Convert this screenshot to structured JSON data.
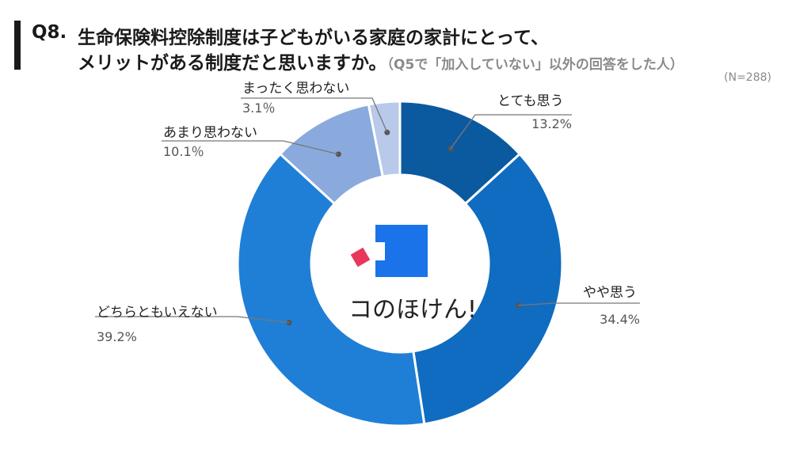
{
  "header": {
    "question_number": "Q8.",
    "question_line1": "生命保険料控除制度は子どもがいる家庭の家計にとって、",
    "question_line2": "メリットがある制度だと思いますか。",
    "question_note": "（Q5で「加入していない」以外の回答をした人）",
    "sample_size": "(N=288)"
  },
  "logo": {
    "text": "コのほけん!",
    "accent_color": "#e8375a",
    "brand_color": "#1a73e8"
  },
  "chart_data": {
    "type": "pie",
    "donut": true,
    "unit": "%",
    "slices": [
      {
        "label": "とても思う",
        "value": 13.2,
        "display": "13.2%",
        "color": "#0b5aa0"
      },
      {
        "label": "やや思う",
        "value": 34.4,
        "display": "34.4%",
        "color": "#0f6cc0"
      },
      {
        "label": "どちらともいえない",
        "value": 39.2,
        "display": "39.2%",
        "color": "#1f7fd6"
      },
      {
        "label": "あまり思わない",
        "value": 10.1,
        "display": "10.1％",
        "color": "#8aaadd"
      },
      {
        "label": "まったく思わない",
        "value": 3.1,
        "display": "3.1％",
        "color": "#b8c9ea"
      }
    ]
  }
}
